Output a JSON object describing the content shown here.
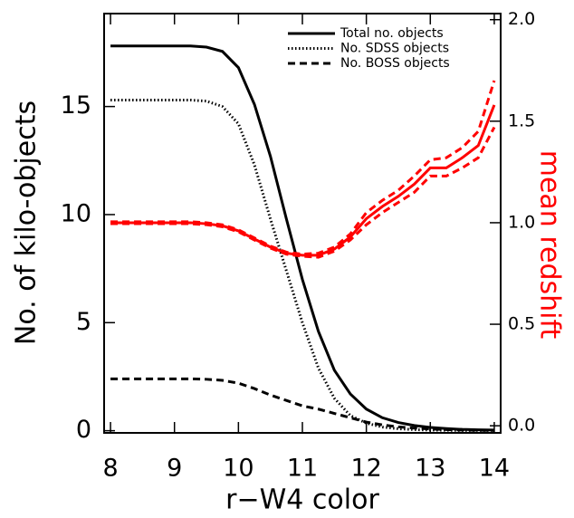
{
  "chart_data": {
    "type": "line",
    "xlabel": "r−W4 color",
    "ylabel": "No. of kilo-objects",
    "y2label": "mean redshift",
    "x": [
      8,
      8.25,
      8.5,
      8.75,
      9,
      9.25,
      9.5,
      9.75,
      10,
      10.25,
      10.5,
      10.75,
      11,
      11.25,
      11.5,
      11.75,
      12,
      12.25,
      12.5,
      12.75,
      13,
      13.25,
      13.5,
      13.75,
      14
    ],
    "series": [
      {
        "name": "Total no. objects",
        "color": "#000000",
        "linestyle": "solid",
        "values": [
          17.8,
          17.8,
          17.8,
          17.8,
          17.8,
          17.8,
          17.75,
          17.55,
          16.8,
          15.1,
          12.7,
          9.8,
          7.0,
          4.6,
          2.8,
          1.7,
          1.0,
          0.6,
          0.38,
          0.24,
          0.15,
          0.1,
          0.06,
          0.04,
          0.03
        ]
      },
      {
        "name": "No. SDSS objects",
        "color": "#000000",
        "linestyle": "dotted",
        "values": [
          15.3,
          15.3,
          15.3,
          15.3,
          15.3,
          15.3,
          15.25,
          15.0,
          14.2,
          12.3,
          9.8,
          7.4,
          5.0,
          2.9,
          1.5,
          0.7,
          0.35,
          0.17,
          0.09,
          0.05,
          0.03,
          0.02,
          0.01,
          0.01,
          0.01
        ]
      },
      {
        "name": "No. BOSS objects",
        "color": "#000000",
        "linestyle": "dashed",
        "values": [
          2.4,
          2.4,
          2.4,
          2.4,
          2.4,
          2.4,
          2.38,
          2.33,
          2.2,
          1.95,
          1.65,
          1.4,
          1.15,
          1.0,
          0.8,
          0.6,
          0.4,
          0.27,
          0.18,
          0.12,
          0.08,
          0.05,
          0.03,
          0.02,
          0.01
        ]
      },
      {
        "color": "#ff0000",
        "linestyle": "solid",
        "axis": "y2",
        "values": [
          1.0,
          1.0,
          1.0,
          1.0,
          1.0,
          1.0,
          0.995,
          0.985,
          0.96,
          0.92,
          0.88,
          0.85,
          0.84,
          0.84,
          0.87,
          0.93,
          1.02,
          1.08,
          1.13,
          1.19,
          1.27,
          1.27,
          1.32,
          1.38,
          1.58
        ]
      },
      {
        "color": "#ff0000",
        "linestyle": "dashed",
        "axis": "y2",
        "values": [
          1.005,
          1.005,
          1.005,
          1.005,
          1.005,
          1.005,
          1.0,
          0.99,
          0.965,
          0.925,
          0.885,
          0.855,
          0.845,
          0.85,
          0.88,
          0.945,
          1.05,
          1.11,
          1.16,
          1.23,
          1.31,
          1.32,
          1.37,
          1.45,
          1.7
        ]
      },
      {
        "color": "#ff0000",
        "linestyle": "dashed",
        "axis": "y2",
        "values": [
          0.995,
          0.995,
          0.995,
          0.995,
          0.995,
          0.995,
          0.99,
          0.98,
          0.955,
          0.915,
          0.875,
          0.845,
          0.835,
          0.83,
          0.86,
          0.915,
          0.99,
          1.05,
          1.1,
          1.15,
          1.23,
          1.23,
          1.27,
          1.32,
          1.47
        ]
      }
    ],
    "xlim": [
      7.9,
      14.1
    ],
    "xticks": [
      8,
      9,
      10,
      11,
      12,
      13,
      14
    ],
    "ylim": [
      -0.1,
      19.3
    ],
    "yticks": [
      0,
      5,
      10,
      15
    ],
    "y2lim": [
      -0.035,
      2.03
    ],
    "y2ticks": [
      {
        "value": 0,
        "label": "0.0"
      },
      0.5,
      {
        "value": 1,
        "label": "1.0"
      },
      1.5,
      {
        "value": 2,
        "label": "2.0"
      }
    ],
    "y2color": "#ff0000",
    "legend": "upper right"
  }
}
